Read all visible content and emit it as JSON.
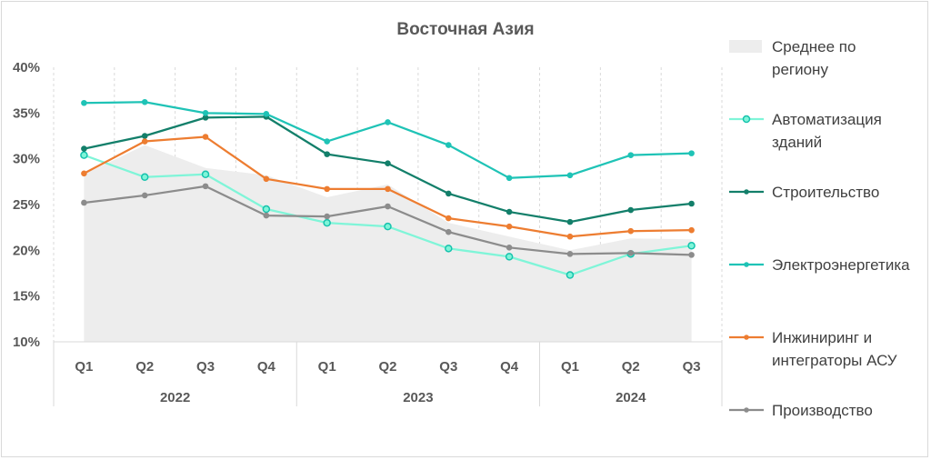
{
  "chart_data": {
    "type": "line",
    "title": "Восточная Азия",
    "ylim": [
      10,
      40
    ],
    "y_ticks": [
      "10%",
      "15%",
      "20%",
      "25%",
      "30%",
      "35%",
      "40%"
    ],
    "grid": "vertical dashed",
    "legend_position": "right",
    "categories": [
      "Q1",
      "Q2",
      "Q3",
      "Q4",
      "Q1",
      "Q2",
      "Q3",
      "Q4",
      "Q1",
      "Q2",
      "Q3"
    ],
    "groups": [
      {
        "label": "2022",
        "count": 4
      },
      {
        "label": "2023",
        "count": 4
      },
      {
        "label": "2024",
        "count": 3
      }
    ],
    "area": {
      "name": "Среднее по региону",
      "name_lines": [
        "Среднее по",
        "региону"
      ],
      "color": "#ededed",
      "values": [
        28.3,
        31.5,
        29.0,
        28.2,
        25.8,
        27.2,
        23.0,
        21.5,
        20.0,
        21.3,
        21.2
      ]
    },
    "series": [
      {
        "name": "Автоматизация зданий",
        "name_lines": [
          "Автоматизация",
          "зданий"
        ],
        "color": "#7ff5d8",
        "marker": "circle-open",
        "values": [
          30.4,
          28.0,
          28.3,
          24.5,
          23.0,
          22.6,
          20.2,
          19.3,
          17.3,
          19.6,
          20.5
        ]
      },
      {
        "name": "Строительство",
        "name_lines": [
          "Строительство"
        ],
        "color": "#137f6a",
        "marker": "dot",
        "values": [
          31.1,
          32.5,
          34.5,
          34.6,
          30.5,
          29.5,
          26.2,
          24.2,
          23.1,
          24.4,
          25.1
        ]
      },
      {
        "name": "Электроэнергетика",
        "name_lines": [
          "Электроэнергетика"
        ],
        "color": "#1fc3b6",
        "marker": "dot",
        "values": [
          36.1,
          36.2,
          35.0,
          34.9,
          31.9,
          34.0,
          31.5,
          27.9,
          28.2,
          30.4,
          30.6
        ]
      },
      {
        "name": "Инжиниринг и интеграторы АСУ",
        "name_lines": [
          "Инжиниринг и",
          "интеграторы АСУ"
        ],
        "color": "#ed7d31",
        "marker": "dot",
        "values": [
          28.4,
          31.9,
          32.4,
          27.8,
          26.7,
          26.7,
          23.5,
          22.6,
          21.5,
          22.1,
          22.2
        ]
      },
      {
        "name": "Производство",
        "name_lines": [
          "Производство"
        ],
        "color": "#8c8c8c",
        "marker": "dot",
        "values": [
          25.2,
          26.0,
          27.0,
          23.8,
          23.7,
          24.8,
          22.0,
          20.3,
          19.6,
          19.7,
          19.5
        ]
      }
    ]
  }
}
